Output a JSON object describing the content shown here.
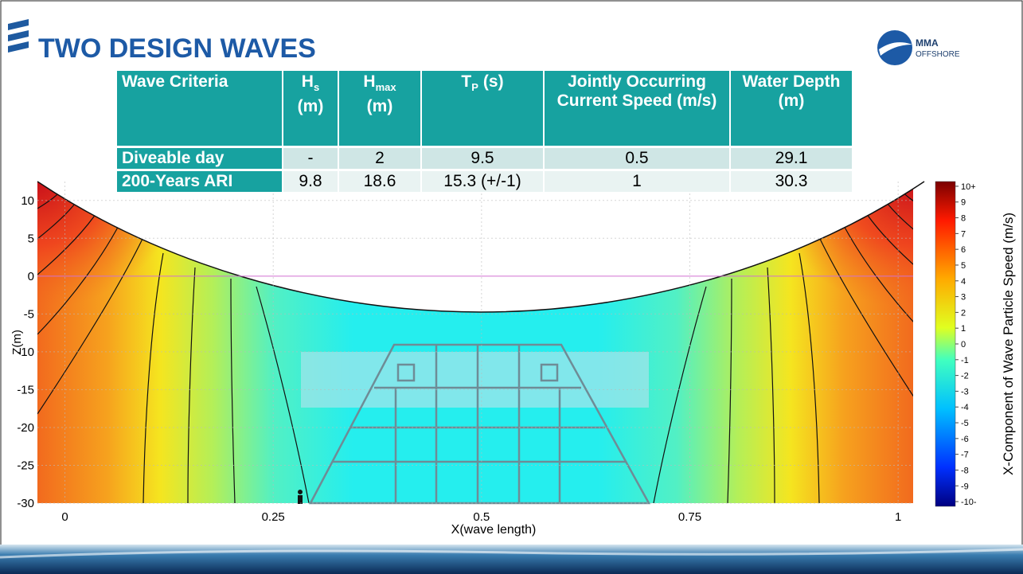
{
  "header": {
    "title": "TWO DESIGN WAVES",
    "logo": {
      "name": "MMA",
      "sub": "OFFSHORE"
    }
  },
  "table": {
    "header": [
      {
        "text": "Wave Criteria"
      },
      {
        "text": "H",
        "sub": "s",
        "below": "(m)"
      },
      {
        "text": "H",
        "sub": "max",
        "below": "(m)"
      },
      {
        "text": "T",
        "sub": "P",
        "after": "(s)"
      },
      {
        "text": "Jointly Occurring Current Speed (m/s)"
      },
      {
        "text": "Water Depth (m)"
      }
    ],
    "rows": [
      [
        "Diveable day",
        "-",
        "2",
        "9.5",
        "0.5",
        "29.1"
      ],
      [
        "200-Years ARI",
        "9.8",
        "18.6",
        "15.3 (+/-1)",
        "1",
        "30.3"
      ]
    ]
  },
  "chart_data": {
    "type": "contour",
    "xlabel": "X(wave length)",
    "ylabel": "Z(m)",
    "xlim": [
      -0.033,
      1.018
    ],
    "ylim": [
      -30,
      12.5
    ],
    "xticks": [
      0,
      0.25,
      0.5,
      0.75,
      1
    ],
    "yticks": [
      10,
      5,
      0,
      -5,
      -10,
      -15,
      -20,
      -25,
      -30
    ],
    "colorbar": {
      "label": "X-Component of Wave Particle Speed (m/s)",
      "clim": [
        -10.3,
        10.3
      ],
      "ticks": [
        {
          "value": 10,
          "label": "10+"
        },
        9,
        8,
        7,
        6,
        5,
        4,
        3,
        2,
        1,
        0,
        -1,
        -2,
        -3,
        -4,
        -5,
        -6,
        -7,
        -8,
        -9,
        {
          "value": -10,
          "label": "-10-"
        }
      ]
    }
  }
}
